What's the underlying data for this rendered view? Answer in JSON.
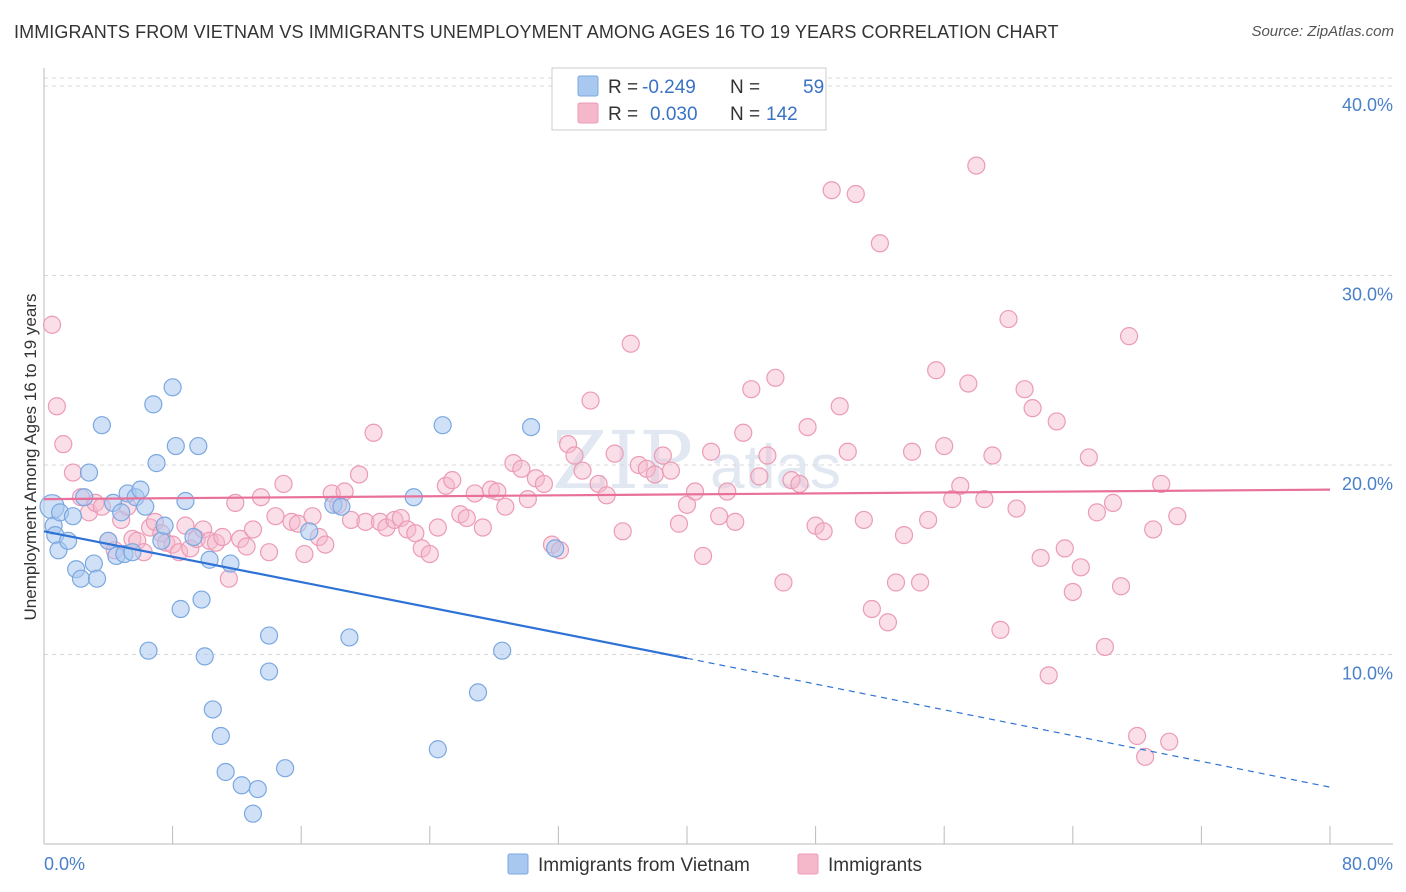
{
  "title": "IMMIGRANTS FROM VIETNAM VS IMMIGRANTS UNEMPLOYMENT AMONG AGES 16 TO 19 YEARS CORRELATION CHART",
  "source": "Source: ZipAtlas.com",
  "watermark": {
    "zip": "ZIP",
    "atlas": "atlas"
  },
  "colors": {
    "blue_fill": "#a9c8f0",
    "blue_stroke": "#7aa8e0",
    "blue_line": "#2f72d6",
    "pink_fill": "#f5b8cb",
    "pink_stroke": "#ec9bb5",
    "pink_line": "#e8709a",
    "axis_label": "#4a80c9",
    "grid": "#d8d8d8"
  },
  "legend": {
    "rows": [
      {
        "r_label": "R =",
        "r_value": "-0.249",
        "n_label": "N =",
        "n_value": "59"
      },
      {
        "r_label": "R =",
        "r_value": "0.030",
        "n_label": "N =",
        "n_value": "142"
      }
    ]
  },
  "bottom_legend": {
    "series1": "Immigrants from Vietnam",
    "series2": "Immigrants"
  },
  "chart_data": {
    "type": "scatter",
    "title": "IMMIGRANTS FROM VIETNAM VS IMMIGRANTS UNEMPLOYMENT AMONG AGES 16 TO 19 YEARS CORRELATION CHART",
    "xlabel": "",
    "ylabel": "Unemployment Among Ages 16 to 19 years",
    "xlim": [
      0,
      80
    ],
    "ylim": [
      0,
      40
    ],
    "x_tick_labels": [
      "0.0%",
      "80.0%"
    ],
    "y_ticks": [
      10,
      20,
      30,
      40
    ],
    "y_tick_labels": [
      "10.0%",
      "20.0%",
      "30.0%",
      "40.0%"
    ],
    "grid": true,
    "series": [
      {
        "name": "Immigrants from Vietnam",
        "color": "#a9c8f0",
        "r": -0.249,
        "n": 59,
        "trend": {
          "x0": 0,
          "y0": 16.5,
          "x1": 40,
          "y1": 9.8,
          "dashed_to_x": 80,
          "dashed_to_y": 3.0
        },
        "points": [
          [
            0.5,
            17.8
          ],
          [
            0.6,
            16.8
          ],
          [
            0.7,
            16.3
          ],
          [
            0.9,
            15.5
          ],
          [
            1.0,
            17.5
          ],
          [
            1.5,
            16.0
          ],
          [
            1.8,
            17.3
          ],
          [
            2.0,
            14.5
          ],
          [
            2.3,
            14.0
          ],
          [
            2.5,
            18.3
          ],
          [
            2.8,
            19.6
          ],
          [
            3.1,
            14.8
          ],
          [
            3.3,
            14.0
          ],
          [
            3.6,
            22.1
          ],
          [
            4.0,
            16.0
          ],
          [
            4.3,
            18.0
          ],
          [
            4.5,
            15.2
          ],
          [
            4.8,
            17.5
          ],
          [
            5.0,
            15.3
          ],
          [
            5.2,
            18.5
          ],
          [
            5.5,
            15.4
          ],
          [
            5.7,
            18.3
          ],
          [
            6.0,
            18.7
          ],
          [
            6.3,
            17.8
          ],
          [
            6.5,
            10.2
          ],
          [
            6.8,
            23.2
          ],
          [
            7.0,
            20.1
          ],
          [
            7.3,
            16.0
          ],
          [
            7.5,
            16.8
          ],
          [
            8.0,
            24.1
          ],
          [
            8.2,
            21.0
          ],
          [
            8.5,
            12.4
          ],
          [
            8.8,
            18.1
          ],
          [
            9.3,
            16.2
          ],
          [
            9.6,
            21.0
          ],
          [
            9.8,
            12.9
          ],
          [
            10.0,
            9.9
          ],
          [
            10.3,
            15.0
          ],
          [
            10.5,
            7.1
          ],
          [
            11.0,
            5.7
          ],
          [
            11.3,
            3.8
          ],
          [
            11.6,
            14.8
          ],
          [
            12.3,
            3.1
          ],
          [
            13.0,
            1.6
          ],
          [
            13.3,
            2.9
          ],
          [
            14.0,
            11.0
          ],
          [
            14.0,
            9.1
          ],
          [
            15.0,
            4.0
          ],
          [
            16.5,
            16.5
          ],
          [
            18.0,
            17.9
          ],
          [
            18.5,
            17.8
          ],
          [
            19.0,
            10.9
          ],
          [
            23.0,
            18.3
          ],
          [
            24.5,
            5.0
          ],
          [
            24.8,
            22.1
          ],
          [
            27.0,
            8.0
          ],
          [
            28.5,
            10.2
          ],
          [
            30.3,
            22.0
          ],
          [
            31.8,
            15.6
          ]
        ]
      },
      {
        "name": "Immigrants",
        "color": "#f5b8cb",
        "r": 0.03,
        "n": 142,
        "trend": {
          "x0": 0,
          "y0": 18.2,
          "x1": 80,
          "y1": 18.7
        },
        "points": [
          [
            0.5,
            27.4
          ],
          [
            0.8,
            23.1
          ],
          [
            1.2,
            21.1
          ],
          [
            1.8,
            19.6
          ],
          [
            2.3,
            18.3
          ],
          [
            2.8,
            17.5
          ],
          [
            3.2,
            18.0
          ],
          [
            3.6,
            17.8
          ],
          [
            4.0,
            16.0
          ],
          [
            4.4,
            15.5
          ],
          [
            4.8,
            17.1
          ],
          [
            5.2,
            17.8
          ],
          [
            5.5,
            16.1
          ],
          [
            5.8,
            16.0
          ],
          [
            6.2,
            15.4
          ],
          [
            6.6,
            16.7
          ],
          [
            6.9,
            17.0
          ],
          [
            7.3,
            16.4
          ],
          [
            7.6,
            15.9
          ],
          [
            8.0,
            15.8
          ],
          [
            8.4,
            15.4
          ],
          [
            8.8,
            16.8
          ],
          [
            9.1,
            15.6
          ],
          [
            9.5,
            16.1
          ],
          [
            9.9,
            16.6
          ],
          [
            10.3,
            16.0
          ],
          [
            10.7,
            15.9
          ],
          [
            11.1,
            16.2
          ],
          [
            11.5,
            14.0
          ],
          [
            11.9,
            18.0
          ],
          [
            12.2,
            16.1
          ],
          [
            12.6,
            15.7
          ],
          [
            13.0,
            16.6
          ],
          [
            13.5,
            18.3
          ],
          [
            14.0,
            15.4
          ],
          [
            14.4,
            17.3
          ],
          [
            14.9,
            19.0
          ],
          [
            15.4,
            17.0
          ],
          [
            15.8,
            16.9
          ],
          [
            16.2,
            15.3
          ],
          [
            16.7,
            17.3
          ],
          [
            17.1,
            16.2
          ],
          [
            17.5,
            15.8
          ],
          [
            17.9,
            18.5
          ],
          [
            18.3,
            17.9
          ],
          [
            18.7,
            18.6
          ],
          [
            19.1,
            17.1
          ],
          [
            19.6,
            19.5
          ],
          [
            20.0,
            17.0
          ],
          [
            20.5,
            21.7
          ],
          [
            20.9,
            17.0
          ],
          [
            21.3,
            16.7
          ],
          [
            21.8,
            17.1
          ],
          [
            22.2,
            17.2
          ],
          [
            22.6,
            16.6
          ],
          [
            23.1,
            16.4
          ],
          [
            23.5,
            15.6
          ],
          [
            24.0,
            15.3
          ],
          [
            24.5,
            16.7
          ],
          [
            25.0,
            18.9
          ],
          [
            25.4,
            19.2
          ],
          [
            25.9,
            17.4
          ],
          [
            26.3,
            17.2
          ],
          [
            26.8,
            18.5
          ],
          [
            27.3,
            16.7
          ],
          [
            27.8,
            18.7
          ],
          [
            28.2,
            18.6
          ],
          [
            28.7,
            17.8
          ],
          [
            29.2,
            20.1
          ],
          [
            29.7,
            19.8
          ],
          [
            30.1,
            18.2
          ],
          [
            30.6,
            19.3
          ],
          [
            31.1,
            19.0
          ],
          [
            31.6,
            15.8
          ],
          [
            32.1,
            15.5
          ],
          [
            32.6,
            21.1
          ],
          [
            33.0,
            20.5
          ],
          [
            33.5,
            19.7
          ],
          [
            34.0,
            23.4
          ],
          [
            34.5,
            19.0
          ],
          [
            35.0,
            18.4
          ],
          [
            35.5,
            20.6
          ],
          [
            36.0,
            16.5
          ],
          [
            36.5,
            26.4
          ],
          [
            37.0,
            20.0
          ],
          [
            37.5,
            19.8
          ],
          [
            38.0,
            19.5
          ],
          [
            38.5,
            20.5
          ],
          [
            39.0,
            19.7
          ],
          [
            39.5,
            16.9
          ],
          [
            40.0,
            17.9
          ],
          [
            40.5,
            18.6
          ],
          [
            41.0,
            15.2
          ],
          [
            41.5,
            20.7
          ],
          [
            42.0,
            17.3
          ],
          [
            42.5,
            18.6
          ],
          [
            43.0,
            17.0
          ],
          [
            43.5,
            21.7
          ],
          [
            44.0,
            24.0
          ],
          [
            44.5,
            19.4
          ],
          [
            45.0,
            20.5
          ],
          [
            45.5,
            24.6
          ],
          [
            46.0,
            13.8
          ],
          [
            46.5,
            19.2
          ],
          [
            47.0,
            19.0
          ],
          [
            47.5,
            22.0
          ],
          [
            48.0,
            16.8
          ],
          [
            48.5,
            16.5
          ],
          [
            49.0,
            34.5
          ],
          [
            49.5,
            23.1
          ],
          [
            50.0,
            20.7
          ],
          [
            50.5,
            34.3
          ],
          [
            51.0,
            17.1
          ],
          [
            51.5,
            12.4
          ],
          [
            52.0,
            31.7
          ],
          [
            52.5,
            11.7
          ],
          [
            53.0,
            13.8
          ],
          [
            53.5,
            16.3
          ],
          [
            54.0,
            20.7
          ],
          [
            54.5,
            13.8
          ],
          [
            55.0,
            17.1
          ],
          [
            55.5,
            25.0
          ],
          [
            56.0,
            21.0
          ],
          [
            56.5,
            18.2
          ],
          [
            57.0,
            18.9
          ],
          [
            57.5,
            24.3
          ],
          [
            58.0,
            35.8
          ],
          [
            58.5,
            18.2
          ],
          [
            59.0,
            20.5
          ],
          [
            59.5,
            11.3
          ],
          [
            60.0,
            27.7
          ],
          [
            60.5,
            17.7
          ],
          [
            61.0,
            24.0
          ],
          [
            61.5,
            23.0
          ],
          [
            62.0,
            15.1
          ],
          [
            62.5,
            8.9
          ],
          [
            63.0,
            22.3
          ],
          [
            63.5,
            15.6
          ],
          [
            64.0,
            13.3
          ],
          [
            64.5,
            14.6
          ],
          [
            65.0,
            20.4
          ],
          [
            65.5,
            17.5
          ],
          [
            66.0,
            10.4
          ],
          [
            66.5,
            18.0
          ],
          [
            67.0,
            13.6
          ],
          [
            67.5,
            26.8
          ],
          [
            68.0,
            5.7
          ],
          [
            68.5,
            4.6
          ],
          [
            69.0,
            16.6
          ],
          [
            69.5,
            19.0
          ],
          [
            70.0,
            5.4
          ],
          [
            70.5,
            17.3
          ]
        ]
      }
    ]
  }
}
